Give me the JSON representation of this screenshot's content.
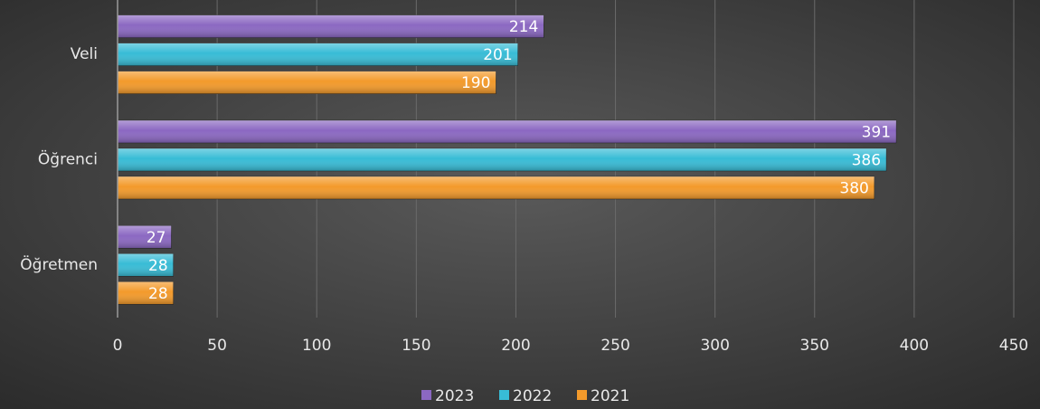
{
  "chart_data": {
    "type": "bar",
    "orientation": "horizontal",
    "categories": [
      "Veli",
      "Öğrenci",
      "Öğretmen"
    ],
    "series": [
      {
        "name": "2023",
        "color": "#8b68c2",
        "values": [
          214,
          391,
          27
        ]
      },
      {
        "name": "2022",
        "color": "#38bcd6",
        "values": [
          201,
          386,
          28
        ]
      },
      {
        "name": "2021",
        "color": "#f39a2b",
        "values": [
          190,
          380,
          28
        ]
      }
    ],
    "xlim": [
      0,
      450
    ],
    "xticks": [
      0,
      50,
      100,
      150,
      200,
      250,
      300,
      350,
      400,
      450
    ],
    "grid": true,
    "legend": "bottom"
  }
}
